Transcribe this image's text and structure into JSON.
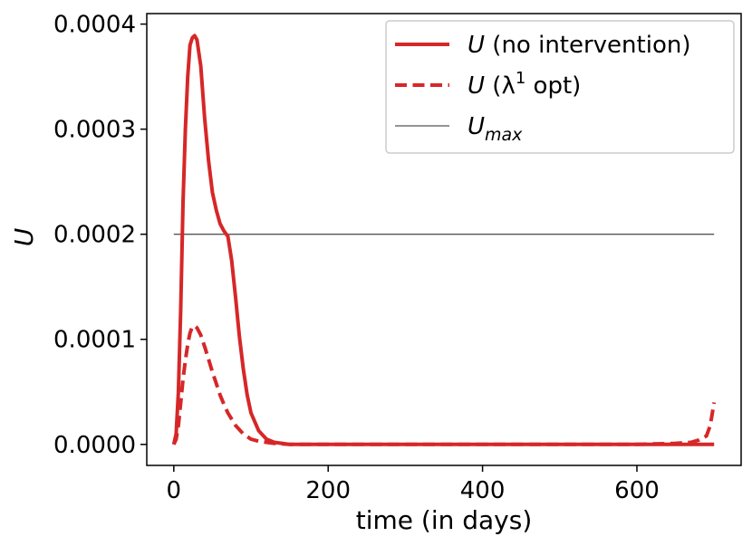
{
  "chart_data": {
    "type": "line",
    "xlabel": "time (in days)",
    "ylabel": "U",
    "xlim": [
      -35,
      735
    ],
    "ylim": [
      -2e-05,
      0.00041
    ],
    "xticks": [
      0,
      200,
      400,
      600
    ],
    "xtick_labels": [
      "0",
      "200",
      "400",
      "600"
    ],
    "yticks": [
      0,
      0.0001,
      0.0002,
      0.0003,
      0.0004
    ],
    "ytick_labels": [
      "0.0000",
      "0.0001",
      "0.0002",
      "0.0003",
      "0.0004"
    ],
    "legend_position": "top-right",
    "series": [
      {
        "name": "U (no intervention)",
        "legend": {
          "var": "U",
          "text": " (no intervention)"
        },
        "style": "solid",
        "color": "#d62728",
        "x": [
          0,
          3,
          6,
          9,
          12,
          15,
          18,
          21,
          24,
          27,
          30,
          35,
          40,
          45,
          50,
          55,
          60,
          65,
          70,
          75,
          80,
          85,
          90,
          95,
          100,
          110,
          120,
          130,
          140,
          150,
          175,
          200,
          300,
          400,
          500,
          600,
          700
        ],
        "y": [
          0,
          1e-05,
          5e-05,
          0.00013,
          0.00023,
          0.0003,
          0.00035,
          0.00038,
          0.000387,
          0.000389,
          0.000385,
          0.00036,
          0.00031,
          0.00027,
          0.00024,
          0.000223,
          0.00021,
          0.000203,
          0.000198,
          0.000175,
          0.00014,
          0.000103,
          7.2e-05,
          4.7e-05,
          3e-05,
          1.3e-05,
          5e-06,
          2e-06,
          1e-06,
          0,
          0,
          0,
          0,
          0,
          0,
          0,
          0
        ]
      },
      {
        "name": "U (λ1 opt)",
        "legend": {
          "var": "U",
          "text": " (λ",
          "sup": "1",
          "text2": " opt)"
        },
        "style": "dashed",
        "color": "#d62728",
        "x": [
          0,
          3,
          6,
          9,
          12,
          15,
          18,
          21,
          24,
          27,
          30,
          35,
          40,
          45,
          50,
          55,
          60,
          65,
          70,
          80,
          90,
          100,
          110,
          120,
          130,
          150,
          200,
          300,
          400,
          500,
          600,
          650,
          670,
          680,
          690,
          695,
          700
        ],
        "y": [
          0,
          5e-06,
          1.8e-05,
          4e-05,
          6.2e-05,
          8e-05,
          9.5e-05,
          0.000106,
          0.000112,
          0.000113,
          0.000111,
          0.000104,
          9.3e-05,
          8.1e-05,
          6.9e-05,
          5.8e-05,
          4.7e-05,
          3.8e-05,
          3e-05,
          1.8e-05,
          1e-05,
          5e-06,
          3e-06,
          2e-06,
          1e-06,
          0,
          0,
          0,
          0,
          0,
          0,
          1e-06,
          2e-06,
          4e-06,
          8e-06,
          1.8e-05,
          4e-05
        ]
      },
      {
        "name": "Umax",
        "legend": {
          "var": "U",
          "sub": "max"
        },
        "style": "thin",
        "color": "#555555",
        "x": [
          0,
          700
        ],
        "y": [
          0.0002,
          0.0002
        ]
      }
    ]
  }
}
